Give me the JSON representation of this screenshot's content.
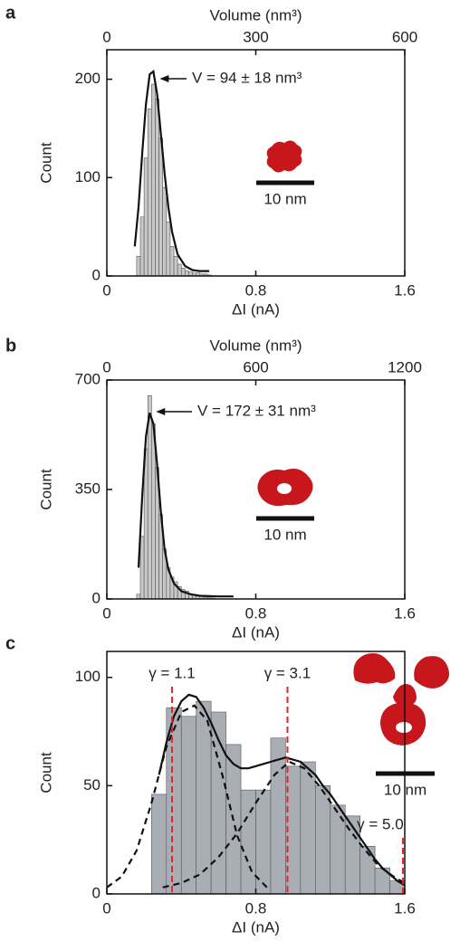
{
  "chart_data": [
    {
      "type": "histogram",
      "label": "a",
      "xlabel": "ΔI (nA)",
      "ylabel": "Count",
      "x2label": "Volume (nm³)",
      "xlim": [
        0,
        1.6
      ],
      "xticks": [
        0,
        0.8,
        1.6
      ],
      "x2lim": [
        0,
        600
      ],
      "x2ticks": [
        0,
        300,
        600
      ],
      "ylim": [
        0,
        230
      ],
      "yticks": [
        0,
        100,
        200
      ],
      "bins": [
        0.16,
        0.18,
        0.2,
        0.22,
        0.24,
        0.26,
        0.28,
        0.3,
        0.32,
        0.34,
        0.36,
        0.38,
        0.4,
        0.42,
        0.44,
        0.46,
        0.48,
        0.5,
        0.52,
        0.54,
        0.56
      ],
      "counts": [
        20,
        60,
        120,
        170,
        195,
        180,
        140,
        90,
        55,
        30,
        20,
        12,
        8,
        5,
        4,
        3,
        3,
        2,
        2,
        1
      ],
      "color": "#c8c8c8",
      "series": [
        {
          "color": "#111111",
          "dash": false,
          "x": [
            0.15,
            0.17,
            0.19,
            0.21,
            0.23,
            0.25,
            0.27,
            0.29,
            0.31,
            0.33,
            0.35,
            0.38,
            0.42,
            0.46,
            0.5,
            0.55
          ],
          "values": [
            30,
            70,
            125,
            175,
            205,
            208,
            185,
            145,
            105,
            70,
            45,
            22,
            10,
            6,
            5,
            5
          ]
        }
      ],
      "annotation": "V = 94 ± 18 nm³",
      "scale_bar_label": "10 nm"
    },
    {
      "type": "histogram",
      "label": "b",
      "xlabel": "ΔI (nA)",
      "ylabel": "Count",
      "x2label": "Volume (nm³)",
      "xlim": [
        0,
        1.6
      ],
      "xticks": [
        0,
        0.8,
        1.6
      ],
      "x2lim": [
        0,
        1200
      ],
      "x2ticks": [
        0,
        600,
        1200
      ],
      "ylim": [
        0,
        700
      ],
      "yticks": [
        0,
        350,
        700
      ],
      "bins": [
        0.16,
        0.18,
        0.2,
        0.22,
        0.24,
        0.26,
        0.28,
        0.3,
        0.32,
        0.34,
        0.36,
        0.38,
        0.4,
        0.42,
        0.44,
        0.46,
        0.48,
        0.5,
        0.52,
        0.54,
        0.56,
        0.58
      ],
      "counts": [
        15,
        200,
        480,
        650,
        560,
        420,
        270,
        160,
        100,
        70,
        55,
        40,
        30,
        25,
        15,
        12,
        10,
        8,
        6,
        4,
        3
      ],
      "color": "#c8c8c8",
      "series": [
        {
          "color": "#111111",
          "dash": false,
          "x": [
            0.17,
            0.19,
            0.21,
            0.23,
            0.25,
            0.27,
            0.29,
            0.31,
            0.33,
            0.36,
            0.4,
            0.45,
            0.5,
            0.6,
            0.68
          ],
          "values": [
            100,
            330,
            520,
            595,
            560,
            430,
            280,
            160,
            95,
            50,
            25,
            15,
            10,
            8,
            8
          ]
        }
      ],
      "annotation": "V = 172 ± 31 nm³",
      "scale_bar_label": "10 nm"
    },
    {
      "type": "histogram",
      "label": "c",
      "xlabel": "ΔI (nA)",
      "ylabel": "Count",
      "xlim": [
        0,
        1.6
      ],
      "xticks": [
        0,
        0.8,
        1.6
      ],
      "ylim": [
        0,
        112
      ],
      "yticks": [
        0,
        50,
        100
      ],
      "bins": [
        0.24,
        0.32,
        0.4,
        0.48,
        0.56,
        0.64,
        0.72,
        0.8,
        0.88,
        0.96,
        1.04,
        1.12,
        1.2,
        1.28,
        1.36,
        1.44,
        1.52,
        1.6
      ],
      "counts": [
        46,
        86,
        82,
        89,
        84,
        69,
        48,
        48,
        72,
        59,
        61,
        50,
        41,
        36,
        22,
        12,
        6
      ],
      "color": "#a9aeb5",
      "series": [
        {
          "color": "#111111",
          "dash": false,
          "x": [
            0.28,
            0.32,
            0.36,
            0.4,
            0.44,
            0.48,
            0.52,
            0.56,
            0.6,
            0.64,
            0.68,
            0.72,
            0.76,
            0.8,
            0.84,
            0.88,
            0.92,
            0.96,
            1.0,
            1.04,
            1.08,
            1.12,
            1.16,
            1.2,
            1.24,
            1.28,
            1.32,
            1.36,
            1.4,
            1.44,
            1.48,
            1.52,
            1.56,
            1.6
          ],
          "values": [
            55,
            70,
            82,
            89,
            92,
            91,
            86,
            79,
            71,
            64,
            60,
            58,
            58,
            59,
            60,
            61,
            62,
            63,
            62,
            61,
            58,
            55,
            50,
            46,
            41,
            36,
            31,
            26,
            21,
            16,
            12,
            9,
            6,
            4
          ]
        },
        {
          "color": "#111111",
          "dash": true,
          "x": [
            0,
            0.08,
            0.16,
            0.24,
            0.32,
            0.4,
            0.47,
            0.54,
            0.62,
            0.7,
            0.78,
            0.86
          ],
          "values": [
            3,
            8,
            20,
            42,
            68,
            84,
            87,
            80,
            55,
            27,
            10,
            3
          ]
        },
        {
          "color": "#111111",
          "dash": true,
          "x": [
            0.3,
            0.4,
            0.5,
            0.6,
            0.7,
            0.8,
            0.9,
            0.98,
            1.06,
            1.14,
            1.22,
            1.3,
            1.38,
            1.46,
            1.54,
            1.6
          ],
          "values": [
            3,
            5,
            9,
            17,
            28,
            42,
            55,
            61,
            58,
            50,
            40,
            30,
            21,
            13,
            8,
            5
          ]
        }
      ],
      "markers": [
        {
          "x": 0.35,
          "label": "γ = 1.1"
        },
        {
          "x": 0.97,
          "label": "γ = 3.1"
        },
        {
          "x": 1.59,
          "label": "γ = 5.0"
        }
      ],
      "marker_color": "#e8232a",
      "scale_bar_label": "10 nm"
    }
  ]
}
